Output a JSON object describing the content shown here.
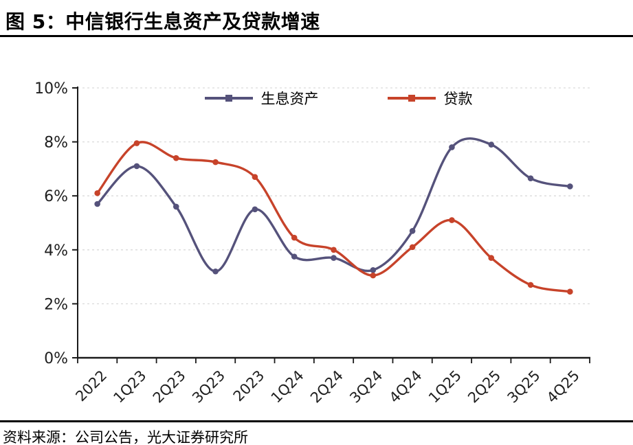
{
  "page": {
    "title": "图 5：中信银行生息资产及贷款增速",
    "source": "资料来源：公司公告，光大证券研究所"
  },
  "legend": {
    "items": [
      {
        "label": "生息资产",
        "color": "#55527B"
      },
      {
        "label": "贷款",
        "color": "#C7432A"
      }
    ]
  },
  "chart_data": {
    "type": "line",
    "title": "图 5：中信银行生息资产及贷款增速",
    "categories": [
      "2022",
      "1Q23",
      "2Q23",
      "3Q23",
      "2023",
      "1Q24",
      "2Q24",
      "3Q24",
      "4Q24",
      "1Q25",
      "2Q25",
      "3Q25",
      "4Q25"
    ],
    "series": [
      {
        "name": "生息资产",
        "color": "#55527B",
        "marker": "circle",
        "values": [
          5.7,
          7.1,
          5.6,
          3.2,
          5.5,
          3.75,
          3.7,
          3.25,
          4.7,
          7.8,
          7.9,
          6.65,
          6.35
        ]
      },
      {
        "name": "贷款",
        "color": "#C7432A",
        "marker": "circle",
        "values": [
          6.1,
          7.95,
          7.4,
          7.25,
          6.7,
          4.45,
          4.0,
          3.05,
          4.1,
          5.1,
          3.7,
          2.7,
          2.45
        ]
      }
    ],
    "xlabel": "",
    "ylabel": "",
    "ylim": [
      0,
      10
    ],
    "yticks": [
      0,
      2,
      4,
      6,
      8,
      10
    ],
    "ytick_suffix": "%",
    "grid": "horizontal-dashed",
    "grid_color": "#d9d9d9",
    "axis_color": "#1a1a1a",
    "tick_label_color": "#1f1f1f",
    "legend_position": "top-center",
    "x_label_rotation": -45
  }
}
